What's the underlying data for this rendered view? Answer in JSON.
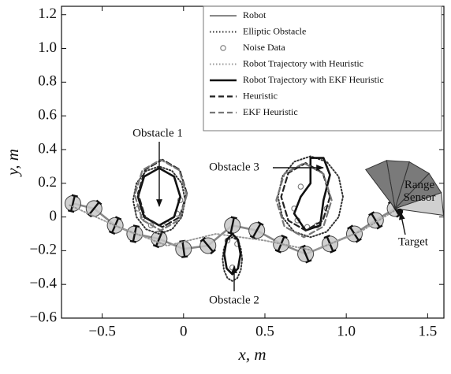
{
  "chart_data": {
    "type": "line",
    "x_label": "x, m",
    "y_label": "y, m",
    "xlim": [
      -0.75,
      1.6
    ],
    "ylim": [
      -0.6,
      1.25
    ],
    "xticks": [
      {
        "value": -0.5,
        "label": "−0.5"
      },
      0,
      0.5,
      {
        "value": 1.0,
        "label": "1.0"
      },
      1.5
    ],
    "yticks": [
      {
        "value": -0.6,
        "label": "−0.6"
      },
      {
        "value": -0.4,
        "label": "−0.4"
      },
      {
        "value": -0.2,
        "label": "−0.2"
      },
      0,
      0.2,
      0.4,
      0.6,
      0.8,
      {
        "value": 1.0,
        "label": "1.0"
      },
      1.2
    ],
    "grid": false,
    "legend": "upper right",
    "series": [
      {
        "name": "Robot",
        "color": "#888888",
        "style": "robot",
        "x": [
          -0.68,
          -0.55,
          -0.42,
          -0.3,
          -0.15,
          0,
          0.15,
          0.3,
          0.45,
          0.6,
          0.75,
          0.9,
          1.05,
          1.18,
          1.3
        ],
        "y": [
          0.08,
          0.05,
          -0.05,
          -0.1,
          -0.13,
          -0.19,
          -0.17,
          -0.05,
          -0.08,
          -0.16,
          -0.22,
          -0.16,
          -0.1,
          -0.02,
          0.05
        ]
      },
      {
        "name": "Elliptic Obstacle",
        "color": "#333333",
        "style": "dotted",
        "x": [
          0.01,
          -0.011,
          -0.07,
          -0.15,
          -0.23,
          -0.289,
          -0.31,
          -0.289,
          -0.23,
          -0.15,
          -0.07,
          -0.011,
          0.01,
          null,
          0.36,
          0.352,
          0.33,
          0.3,
          0.27,
          0.248,
          0.24,
          0.248,
          0.27,
          0.3,
          0.33,
          0.352,
          0.36,
          null,
          0.98,
          0.953,
          0.88,
          0.78,
          0.68,
          0.607,
          0.58,
          0.607,
          0.68,
          0.78,
          0.88,
          0.953,
          0.98
        ],
        "y": [
          0.1,
          0.2,
          0.273,
          0.3,
          0.273,
          0.2,
          0.1,
          0,
          -0.073,
          -0.1,
          -0.073,
          0,
          0.1,
          null,
          -0.25,
          -0.185,
          -0.137,
          -0.12,
          -0.137,
          -0.185,
          -0.25,
          -0.315,
          -0.363,
          -0.38,
          -0.363,
          -0.315,
          -0.25,
          null,
          0.12,
          0.24,
          0.328,
          0.36,
          0.328,
          0.24,
          0.12,
          0,
          -0.088,
          -0.12,
          -0.088,
          0,
          0.12
        ]
      },
      {
        "name": "Noise Data",
        "color": "#777777",
        "style": "markers",
        "x": [
          -0.28,
          -0.25,
          -0.2,
          -0.1,
          -0.04,
          -0.02,
          0.27,
          0.33,
          0.3,
          0.68,
          0.7,
          0.76,
          0.82,
          0.88,
          0.72
        ],
        "y": [
          0.05,
          0,
          -0.05,
          -0.04,
          0.02,
          0.1,
          -0.14,
          -0.16,
          -0.3,
          0.05,
          -0.02,
          -0.06,
          -0.05,
          0.05,
          0.18
        ]
      },
      {
        "name": "Robot Trajectory with Heuristic",
        "color": "#999999",
        "style": "dotted",
        "x": [
          -0.7,
          -0.4,
          -0.1,
          0.2,
          0.5,
          0.8,
          1.1,
          1.3
        ],
        "y": [
          0.07,
          -0.06,
          -0.17,
          -0.1,
          -0.14,
          -0.2,
          -0.08,
          0.04
        ]
      },
      {
        "name": "Robot Trajectory with EKF Heuristic",
        "color": "#111111",
        "style": "solid",
        "x": [
          -0.02,
          -0.058,
          -0.15,
          -0.242,
          -0.28,
          -0.242,
          -0.15,
          -0.058,
          -0.02,
          null,
          0.35,
          0.335,
          0.3,
          0.265,
          0.25,
          0.265,
          0.3,
          0.335,
          0.35,
          null,
          0.78,
          0.78,
          0.86,
          0.9,
          0.86,
          0.84,
          0.75,
          0.68,
          0.72,
          0.78
        ],
        "y": [
          0.12,
          0.24,
          0.29,
          0.24,
          0.12,
          0,
          -0.05,
          0,
          0.12,
          null,
          -0.22,
          -0.135,
          -0.1,
          -0.135,
          -0.22,
          -0.305,
          -0.34,
          -0.305,
          -0.22,
          null,
          0.2,
          0.35,
          0.35,
          0.25,
          0.1,
          -0.05,
          -0.08,
          0.02,
          0.12,
          0.2
        ]
      },
      {
        "name": "Heuristic",
        "color": "#222222",
        "style": "dashed",
        "x": [
          0.02,
          -0.024,
          -0.13,
          -0.236,
          -0.28,
          -0.236,
          -0.13,
          -0.024,
          0.02,
          null,
          0.9,
          0.856,
          0.75,
          0.644,
          0.6,
          0.644,
          0.75,
          0.856,
          0.9
        ],
        "y": [
          0.14,
          0.281,
          0.34,
          0.281,
          0.14,
          -0.001,
          -0.06,
          -0.001,
          0.14,
          null,
          0.12,
          0.261,
          0.32,
          0.261,
          0.12,
          -0.021,
          -0.08,
          -0.021,
          0.12
        ]
      },
      {
        "name": "EKF Heuristic",
        "color": "#777777",
        "style": "dashed",
        "x": [
          0.02,
          -0.027,
          -0.14,
          -0.253,
          -0.3,
          -0.253,
          -0.14,
          -0.027,
          0.02,
          null,
          0.91,
          0.86,
          0.74,
          0.62,
          0.57,
          0.62,
          0.74,
          0.86,
          0.91
        ],
        "y": [
          0.13,
          0.278,
          0.34,
          0.278,
          0.13,
          -0.018,
          -0.08,
          -0.018,
          0.13,
          null,
          0.1,
          0.256,
          0.32,
          0.256,
          0.1,
          -0.056,
          -0.12,
          -0.056,
          0.1
        ]
      }
    ],
    "annotations": [
      {
        "text": "Obstacle 1"
      },
      {
        "text": "Obstacle 2"
      },
      {
        "text": "Obstacle 3"
      },
      {
        "text": [
          "Range",
          "Sensor"
        ]
      },
      {
        "text": "Target"
      }
    ]
  }
}
